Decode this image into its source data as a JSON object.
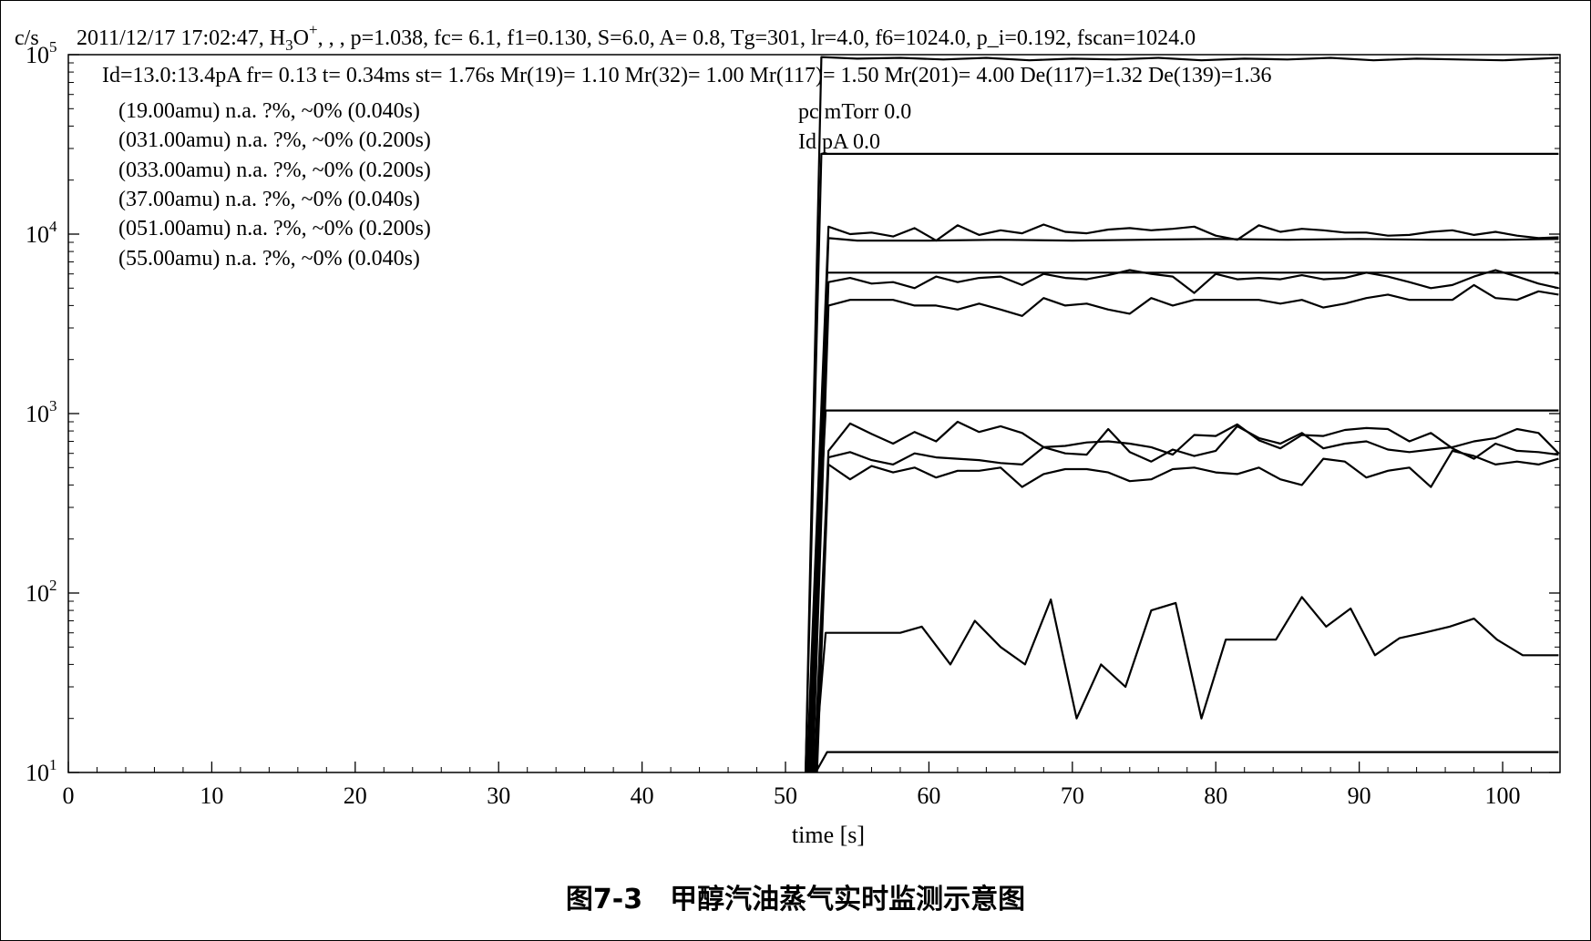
{
  "header": {
    "yunit": "c/s",
    "params_pre": "2011/12/17 17:02:47, H",
    "params_sub": "3",
    "params_o": "O",
    "params_sup": "+",
    "params_post": ", , , p=1.038, fc= 6.1, f1=0.130, S=6.0, A= 0.8, Tg=301, lr=4.0, f6=1024.0, p_i=0.192, fscan=1024.0",
    "line2": "Id=13.0:13.4pA  fr= 0.13 t= 0.34ms st= 1.76s Mr(19)= 1.10 Mr(32)= 1.00 Mr(117)= 1.50 Mr(201)= 4.00 De(117)=1.32 De(139)=1.36"
  },
  "legend": [
    "(19.00amu) n.a. ?%, ~0% (0.040s)",
    "(031.00amu) n.a. ?%, ~0% (0.200s)",
    "(033.00amu) n.a. ?%, ~0% (0.200s)",
    "(37.00amu) n.a. ?%, ~0% (0.040s)",
    "(051.00amu) n.a. ?%, ~0% (0.200s)",
    "(55.00amu) n.a. ?%, ~0% (0.040s)"
  ],
  "annotations": [
    "pc mTorr 0.0",
    "Id pA 0.0"
  ],
  "caption": "图7-3　甲醇汽油蒸气实时监测示意图",
  "chart_data": {
    "type": "line",
    "scale": "log",
    "xlabel": "time [s]",
    "ylabel": "c/s",
    "xlim": [
      0,
      104
    ],
    "ylim": [
      10,
      100000
    ],
    "xticks": [
      0,
      10,
      20,
      30,
      40,
      50,
      60,
      70,
      80,
      90,
      100
    ],
    "yticks": [
      {
        "value": 10,
        "base": "10",
        "exp": "1"
      },
      {
        "value": 100,
        "base": "10",
        "exp": "2"
      },
      {
        "value": 1000,
        "base": "10",
        "exp": "3"
      },
      {
        "value": 10000,
        "base": "10",
        "exp": "4"
      },
      {
        "value": 100000,
        "base": "10",
        "exp": "5"
      }
    ],
    "series": [
      {
        "x": [
          51.4,
          52.5,
          55,
          58,
          61,
          64,
          67,
          70,
          73,
          76,
          79,
          82,
          85,
          88,
          91,
          94,
          97,
          100,
          103.9
        ],
        "y": [
          10,
          97000,
          95000,
          96000,
          94000,
          96000,
          93000,
          95000,
          94000,
          96000,
          93000,
          95000,
          94000,
          96000,
          93000,
          95000,
          94000,
          93000,
          96000
        ]
      },
      {
        "x": [
          51.4,
          52.5,
          103.9
        ],
        "y": [
          10,
          28000,
          28000
        ]
      },
      {
        "x": [
          51.5,
          53,
          54.5,
          56,
          57.5,
          59,
          60.5,
          62,
          63.5,
          65,
          66.5,
          68,
          69.5,
          71,
          72.5,
          74,
          75.5,
          77,
          78.5,
          80,
          81.5,
          83,
          84.5,
          86,
          87.5,
          89,
          90.5,
          92,
          93.5,
          95,
          96.5,
          98,
          99.5,
          101,
          102.5,
          103.9
        ],
        "y": [
          10,
          11000,
          10000,
          10200,
          9700,
          10800,
          9200,
          11200,
          9900,
          10500,
          10100,
          11300,
          10300,
          10100,
          10600,
          10800,
          10500,
          10700,
          11000,
          9800,
          9300,
          11200,
          10300,
          10700,
          10500,
          10200,
          10200,
          9800,
          9900,
          10300,
          10500,
          9900,
          10300,
          9800,
          9500,
          9600
        ]
      },
      {
        "x": [
          51.6,
          53,
          55,
          60,
          65,
          70,
          75,
          80,
          85,
          90,
          95,
          100,
          103.9
        ],
        "y": [
          10,
          9500,
          9200,
          9200,
          9300,
          9200,
          9300,
          9400,
          9300,
          9400,
          9300,
          9300,
          9400
        ]
      },
      {
        "x": [
          51.7,
          52.9,
          103.9
        ],
        "y": [
          10,
          6100,
          6100
        ]
      },
      {
        "x": [
          51.8,
          53,
          54.5,
          56,
          57.5,
          59,
          60.5,
          62,
          63.5,
          65,
          66.5,
          68,
          69.5,
          71,
          72.5,
          74,
          75.5,
          77,
          78.5,
          80,
          81.5,
          83,
          84.5,
          86,
          87.5,
          89,
          90.5,
          92,
          93.5,
          95,
          96.5,
          98,
          99.5,
          101,
          102.5,
          103.9
        ],
        "y": [
          10,
          5400,
          5700,
          5300,
          5400,
          5000,
          5800,
          5400,
          5700,
          5800,
          5200,
          6000,
          5700,
          5600,
          5900,
          6300,
          6000,
          5800,
          4700,
          6000,
          5600,
          5700,
          5600,
          5900,
          5600,
          5700,
          6100,
          5800,
          5400,
          5000,
          5200,
          5800,
          6300,
          5800,
          5300,
          5000
        ]
      },
      {
        "x": [
          51.9,
          53,
          54.5,
          56,
          57.5,
          59,
          60.5,
          62,
          63.5,
          65,
          66.5,
          68,
          69.5,
          71,
          72.5,
          74,
          75.5,
          77,
          78.5,
          80,
          81.5,
          83,
          84.5,
          86,
          87.5,
          89,
          90.5,
          92,
          93.5,
          95,
          96.5,
          98,
          99.5,
          101,
          102.5,
          103.9
        ],
        "y": [
          10,
          4000,
          4300,
          4300,
          4300,
          4000,
          4000,
          3800,
          4100,
          3800,
          3500,
          4400,
          4000,
          4100,
          3800,
          3600,
          4400,
          4000,
          4300,
          4300,
          4300,
          4300,
          4100,
          4300,
          3900,
          4100,
          4400,
          4600,
          4300,
          4300,
          4300,
          5200,
          4400,
          4300,
          4800,
          4600
        ]
      },
      {
        "x": [
          51.5,
          52.8,
          103.9
        ],
        "y": [
          10,
          1040,
          1040
        ]
      },
      {
        "x": [
          52,
          53,
          54.5,
          56,
          57.5,
          59,
          60.5,
          62,
          63.5,
          65,
          66.5,
          68,
          69.5,
          71,
          72.5,
          74,
          75.5,
          77,
          78.5,
          80,
          81.5,
          83,
          84.5,
          86,
          87.5,
          89,
          90.5,
          92,
          93.5,
          95,
          96.5,
          98,
          99.5,
          101,
          102.5,
          103.9
        ],
        "y": [
          10,
          620,
          880,
          770,
          680,
          790,
          700,
          900,
          790,
          850,
          780,
          650,
          600,
          590,
          820,
          610,
          540,
          630,
          580,
          620,
          850,
          730,
          680,
          780,
          640,
          680,
          700,
          630,
          610,
          630,
          650,
          700,
          730,
          820,
          780,
          600
        ]
      },
      {
        "x": [
          52.1,
          53,
          54.5,
          56,
          57.5,
          59,
          60.5,
          62,
          63.5,
          65,
          66.5,
          68,
          69.5,
          71,
          72.5,
          74,
          75.5,
          77,
          78.5,
          80,
          81.5,
          83,
          84.5,
          86,
          87.5,
          89,
          90.5,
          92,
          93.5,
          95,
          96.5,
          98,
          99.5,
          101,
          102.5,
          103.9
        ],
        "y": [
          10,
          570,
          610,
          550,
          520,
          600,
          570,
          560,
          550,
          530,
          520,
          650,
          660,
          690,
          700,
          680,
          650,
          590,
          760,
          750,
          870,
          710,
          640,
          760,
          750,
          810,
          830,
          820,
          700,
          780,
          640,
          560,
          680,
          620,
          610,
          590
        ]
      },
      {
        "x": [
          52.2,
          53,
          54.5,
          56,
          57.5,
          59,
          60.5,
          62,
          63.5,
          65,
          66.5,
          68,
          69.5,
          71,
          72.5,
          74,
          75.5,
          77,
          78.5,
          80,
          81.5,
          83,
          84.5,
          86,
          87.5,
          89,
          90.5,
          92,
          93.5,
          95,
          96.5,
          98,
          99.5,
          101,
          102.5,
          103.9
        ],
        "y": [
          10,
          520,
          430,
          510,
          470,
          500,
          440,
          480,
          480,
          500,
          390,
          460,
          490,
          490,
          470,
          420,
          430,
          490,
          500,
          470,
          460,
          500,
          430,
          400,
          560,
          540,
          440,
          480,
          500,
          390,
          620,
          580,
          520,
          540,
          520,
          560
        ]
      },
      {
        "x": [
          52,
          52.8,
          55,
          58,
          59.5,
          61.5,
          63.2,
          65,
          66.7,
          68.5,
          70.3,
          72,
          73.7,
          75.5,
          77.2,
          79,
          80.7,
          82.5,
          84.2,
          86,
          87.7,
          89.4,
          91.1,
          92.8,
          94.5,
          96.3,
          98,
          99.6,
          101.4,
          103.9
        ],
        "y": [
          10,
          60,
          60,
          60,
          65,
          40,
          70,
          50,
          40,
          92,
          20,
          40,
          30,
          80,
          88,
          20,
          55,
          55,
          55,
          95,
          65,
          82,
          45,
          56,
          60,
          65,
          72,
          55,
          45,
          45
        ]
      },
      {
        "x": [
          52.1,
          52.9,
          103.9
        ],
        "y": [
          10,
          13,
          13
        ]
      }
    ]
  }
}
